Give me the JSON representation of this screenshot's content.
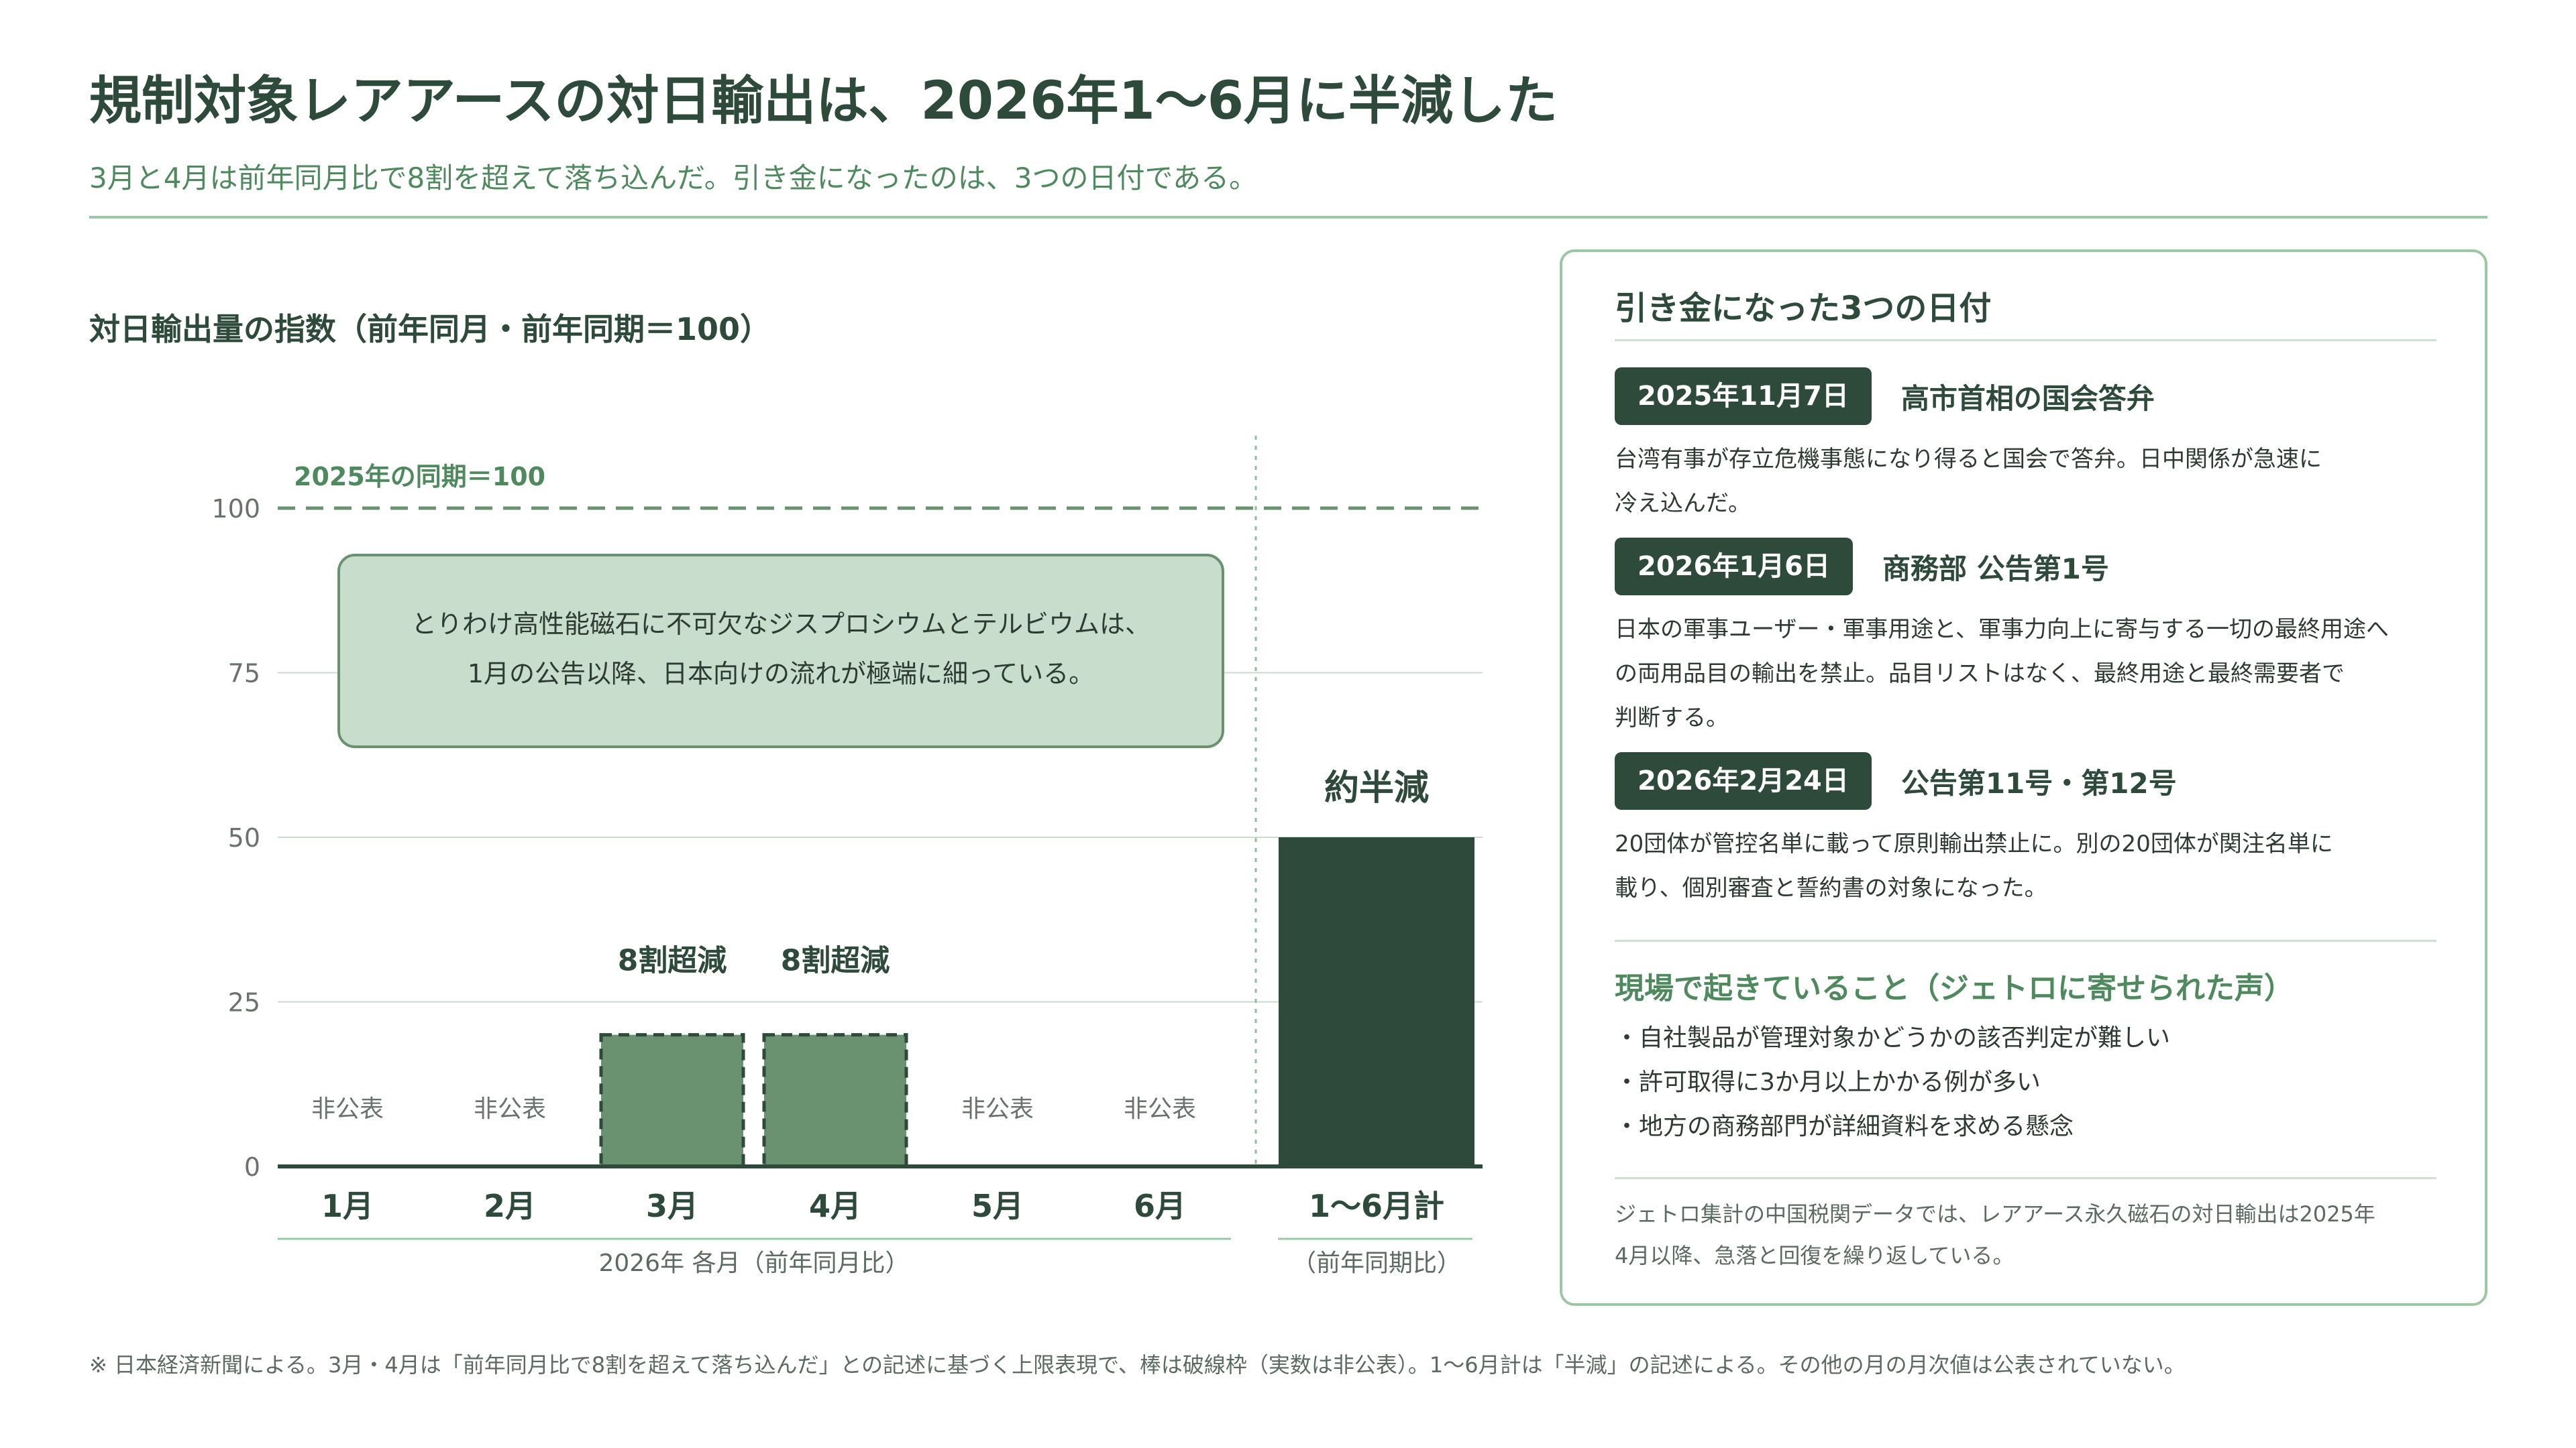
{
  "header": {
    "title": "規制対象レアアースの対日輸出は、2026年1〜6月に半減した",
    "subtitle": "3月と4月は前年同月比で8割を超えて落ち込んだ。引き金になったのは、3つの日付である。"
  },
  "colors": {
    "dark_green": "#2d4a3a",
    "mid_green": "#6b9270",
    "light_green": "#c8ddcb",
    "accent_green": "#4f8a5f",
    "rule_green": "#9cc7a5"
  },
  "chart_data": {
    "type": "bar",
    "title": "対日輸出量の指数（前年同月・前年同期＝100）",
    "ylim": [
      0,
      100
    ],
    "yticks": [
      0,
      25,
      50,
      75,
      100
    ],
    "grid": true,
    "baseline": {
      "value": 100,
      "label": "2025年の同期＝100",
      "style": "dashed"
    },
    "categories": [
      "1月",
      "2月",
      "3月",
      "4月",
      "5月",
      "6月",
      "1〜6月計"
    ],
    "values": [
      null,
      null,
      20,
      20,
      null,
      null,
      50
    ],
    "bar_styles": [
      "none",
      "none",
      "dashed-upper-bound",
      "dashed-upper-bound",
      "none",
      "none",
      "solid"
    ],
    "value_labels": [
      "非公表",
      "非公表",
      "8割超減",
      "8割超減",
      "非公表",
      "非公表",
      "約半減"
    ],
    "group_labels": [
      {
        "label": "2026年 各月（前年同月比）",
        "from": "1月",
        "to": "6月"
      },
      {
        "label": "（前年同期比）",
        "from": "1〜6月計",
        "to": "1〜6月計"
      }
    ],
    "annotation": [
      "とりわけ高性能磁石に不可欠なジスプロシウムとテルビウムは、",
      "1月の公告以降、日本向けの流れが極端に細っている。"
    ]
  },
  "panel": {
    "title": "引き金になった3つの日付",
    "events": [
      {
        "date": "2025年11月7日",
        "name": "高市首相の国会答弁",
        "desc": [
          "台湾有事が存立危機事態になり得ると国会で答弁。日中関係が急速に",
          "冷え込んだ。"
        ]
      },
      {
        "date": "2026年1月6日",
        "name": "商務部 公告第1号",
        "desc": [
          "日本の軍事ユーザー・軍事用途と、軍事力向上に寄与する一切の最終用途へ",
          "の両用品目の輸出を禁止。品目リストはなく、最終用途と最終需要者で",
          "判断する。"
        ]
      },
      {
        "date": "2026年2月24日",
        "name": "公告第11号・第12号",
        "desc": [
          "20団体が管控名単に載って原則輸出禁止に。別の20団体が関注名単に",
          "載り、個別審査と誓約書の対象になった。"
        ]
      }
    ],
    "voices_title": "現場で起きていること（ジェトロに寄せられた声）",
    "voices": [
      "・自社製品が管理対象かどうかの該否判定が難しい",
      "・許可取得に3か月以上かかる例が多い",
      "・地方の商務部門が詳細資料を求める懸念"
    ],
    "note": [
      "ジェトロ集計の中国税関データでは、レアアース永久磁石の対日輸出は2025年",
      "4月以降、急落と回復を繰り返している。"
    ]
  },
  "footnote": "※ 日本経済新聞による。3月・4月は「前年同月比で8割を超えて落ち込んだ」との記述に基づく上限表現で、棒は破線枠（実数は非公表）。1〜6月計は「半減」の記述による。その他の月の月次値は公表されていない。"
}
